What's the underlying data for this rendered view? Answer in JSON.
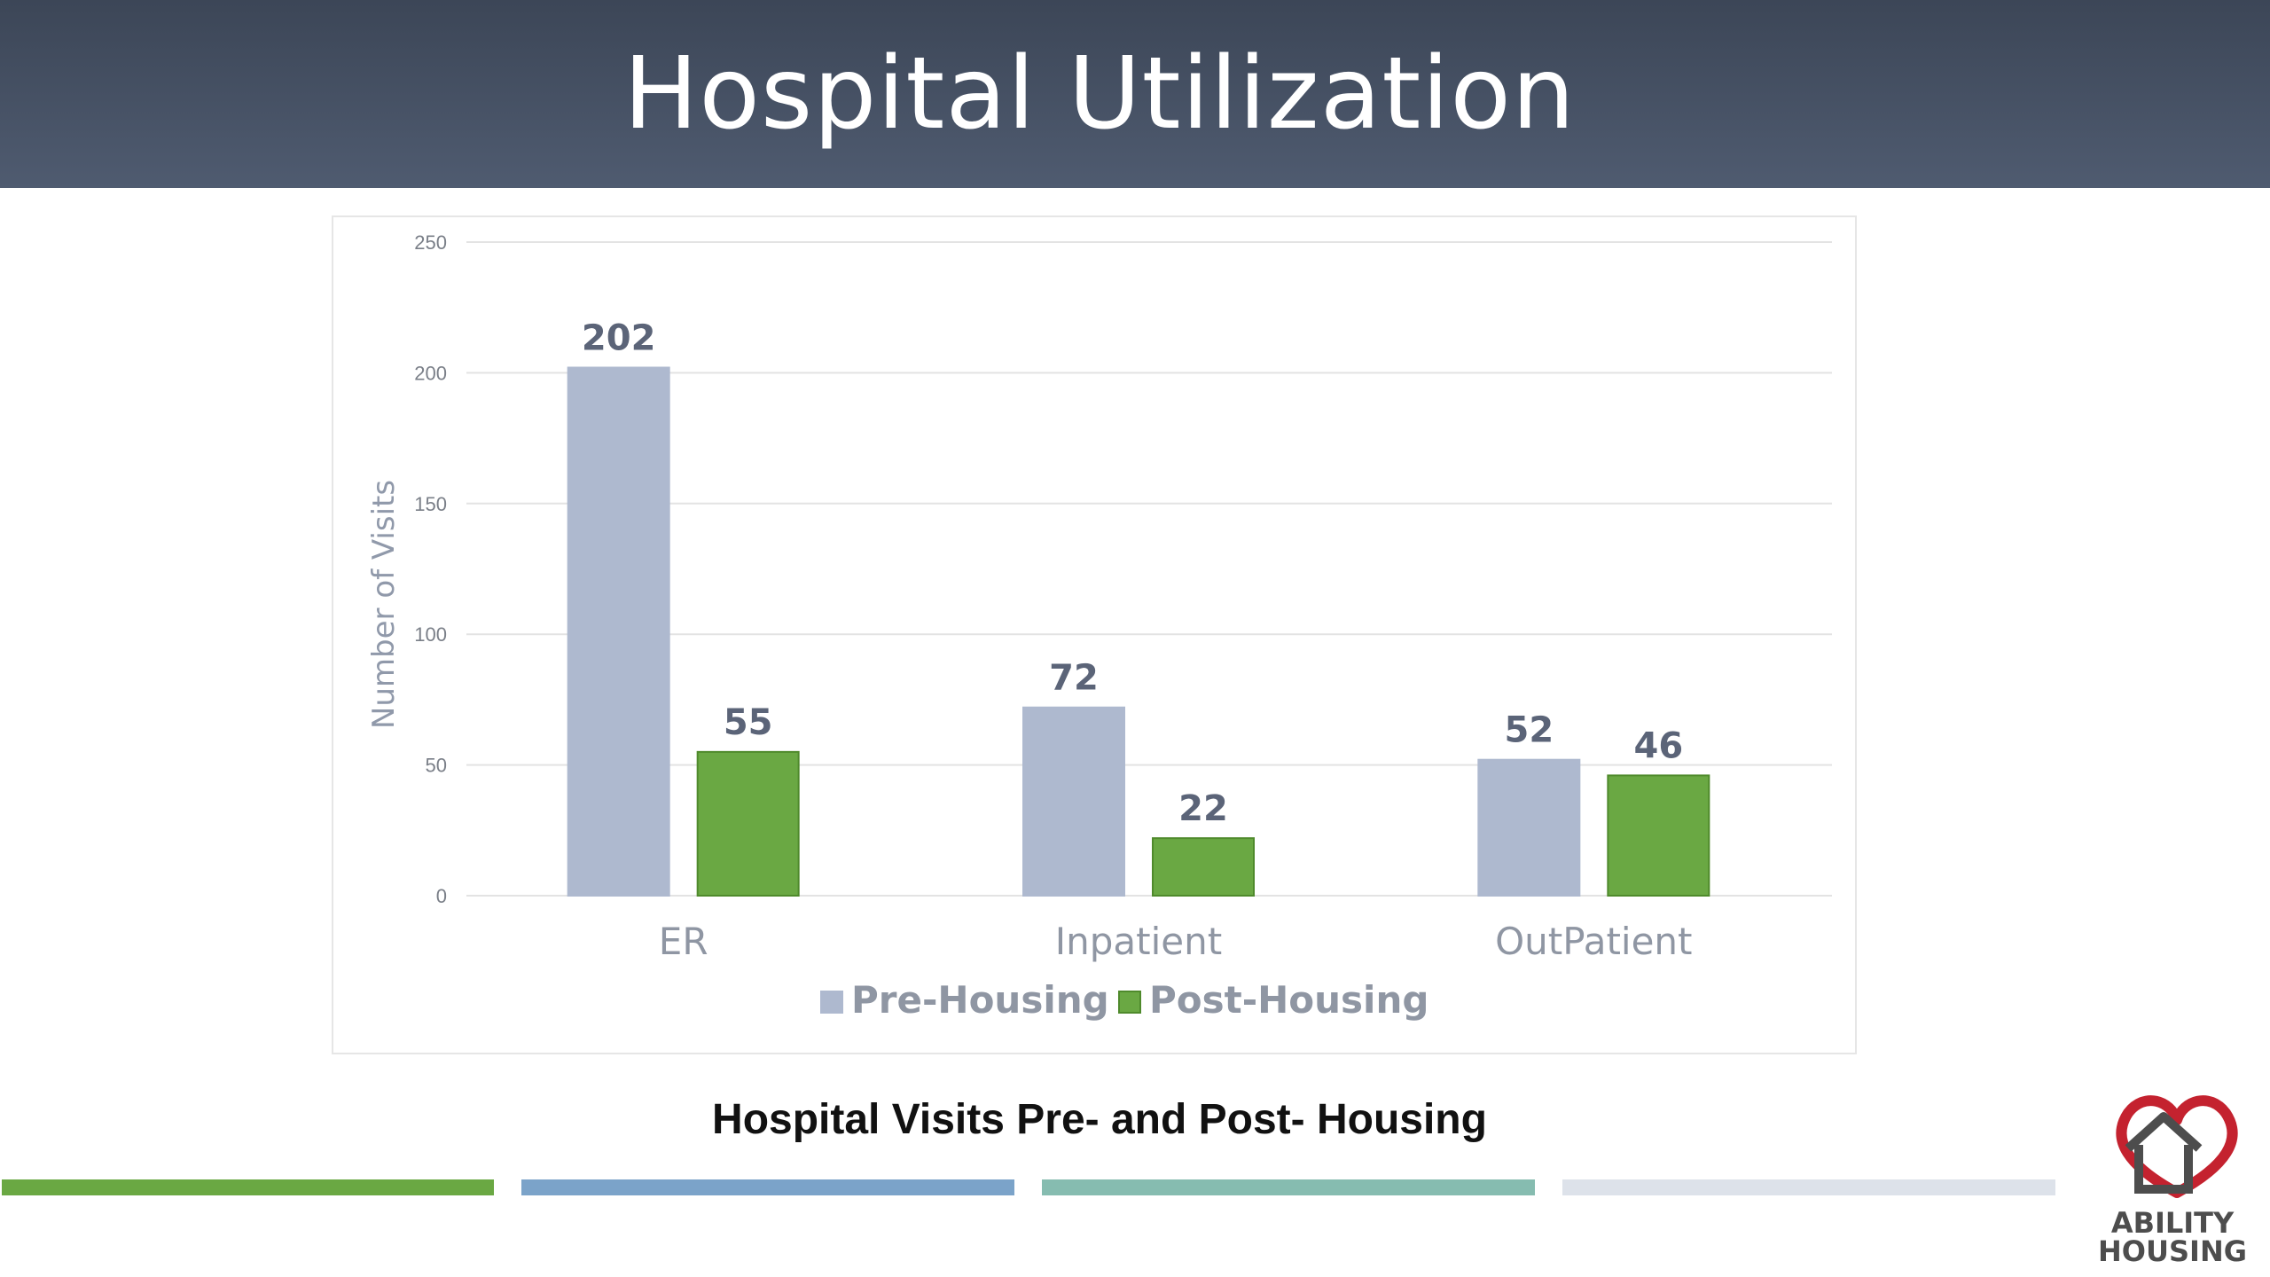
{
  "header": {
    "title": "Hospital Utilization"
  },
  "caption": "Hospital Visits Pre- and Post- Housing",
  "logo": {
    "line1": "ABILITY",
    "line2": "HOUSING"
  },
  "colors": {
    "pre": "#aeb9cf",
    "post": "#6aa843",
    "stripe1": "#6aa843",
    "stripe2": "#7ba3c9",
    "stripe3": "#86bcb0",
    "stripe4": "#dde2ea",
    "logo_red": "#c4222f"
  },
  "chart_data": {
    "type": "bar",
    "categories": [
      "ER",
      "Inpatient",
      "OutPatient"
    ],
    "series": [
      {
        "name": "Pre-Housing",
        "values": [
          202,
          72,
          52
        ]
      },
      {
        "name": "Post-Housing",
        "values": [
          55,
          22,
          46
        ]
      }
    ],
    "ylabel": "Number of Visits",
    "ylim": [
      0,
      250
    ],
    "yticks": [
      0,
      50,
      100,
      150,
      200,
      250
    ],
    "grid": true,
    "legend": "bottom-center",
    "data_labels": true
  }
}
